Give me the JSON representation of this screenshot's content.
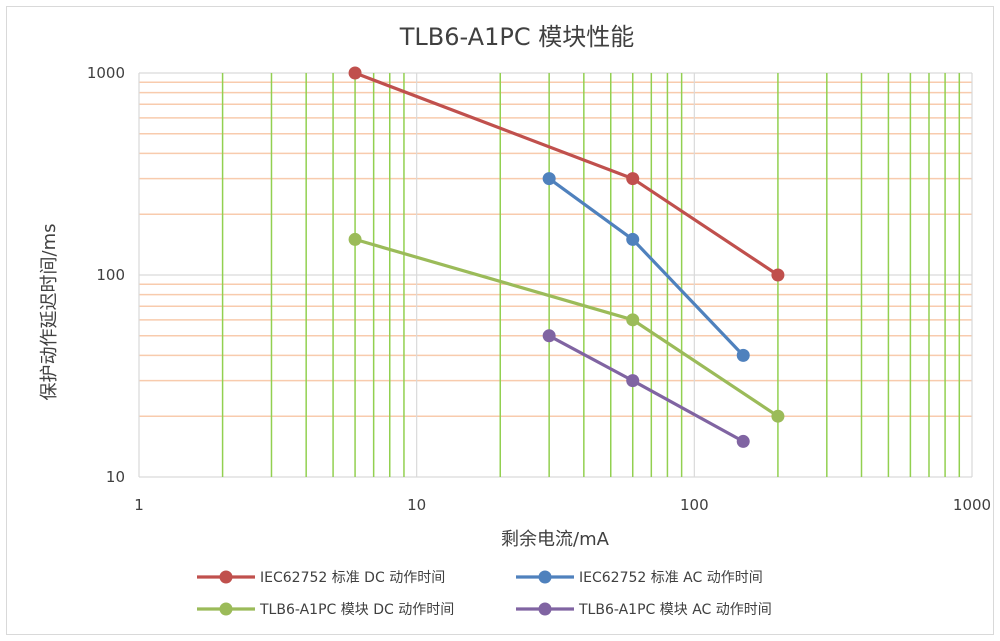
{
  "chart_data": {
    "type": "line",
    "title": "TLB6-A1PC 模块性能",
    "xlabel": "剩余电流/mA",
    "ylabel": "保护动作延迟时间/ms",
    "x_scale": "log",
    "y_scale": "log",
    "xlim": [
      1,
      1000
    ],
    "ylim": [
      10,
      1000
    ],
    "x_ticks": [
      1,
      10,
      100,
      1000
    ],
    "x_tick_labels": [
      "1",
      "10",
      "100",
      "1000"
    ],
    "y_ticks": [
      10,
      100,
      1000
    ],
    "y_tick_labels": [
      "10",
      "100",
      "1000"
    ],
    "grid": true,
    "legend_position": "bottom",
    "series": [
      {
        "name": "IEC62752 标准 DC 动作时间",
        "color": "#c0504d",
        "points": [
          [
            6,
            1000
          ],
          [
            60,
            300
          ],
          [
            200,
            100
          ]
        ]
      },
      {
        "name": "IEC62752 标准 AC 动作时间",
        "color": "#4f81bd",
        "points": [
          [
            30,
            300
          ],
          [
            60,
            150
          ],
          [
            150,
            40
          ]
        ]
      },
      {
        "name": "TLB6-A1PC 模块 DC 动作时间",
        "color": "#9bbb59",
        "points": [
          [
            6,
            150
          ],
          [
            60,
            60
          ],
          [
            200,
            20
          ]
        ]
      },
      {
        "name": "TLB6-A1PC 模块 AC 动作时间",
        "color": "#8064a2",
        "points": [
          [
            30,
            50
          ],
          [
            60,
            30
          ],
          [
            150,
            15
          ]
        ]
      }
    ],
    "colors": {
      "major_grid": "#d9d9d9",
      "minor_x_grid": "#92d050",
      "minor_y_grid": "#f8cbad"
    }
  }
}
